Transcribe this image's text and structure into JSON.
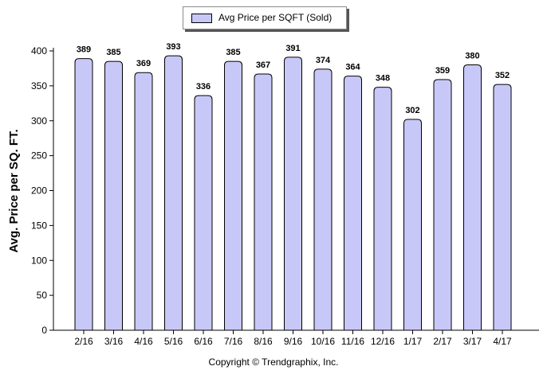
{
  "legend": {
    "label": "Avg Price per SQFT (Sold)"
  },
  "copyright": "Copyright © Trendgraphix, Inc.",
  "colors": {
    "bar_fill": "#c8c8f8",
    "bar_stroke": "#000000",
    "axis": "#000000"
  },
  "chart_data": {
    "type": "bar",
    "title": "",
    "xlabel": "",
    "ylabel": "Avg. Price per SQ. FT.",
    "ylim": [
      0,
      400
    ],
    "yticks": [
      0,
      50,
      100,
      150,
      200,
      250,
      300,
      350,
      400
    ],
    "grid": false,
    "legend_position": "top-center",
    "categories": [
      "2/16",
      "3/16",
      "4/16",
      "5/16",
      "6/16",
      "7/16",
      "8/16",
      "9/16",
      "10/16",
      "11/16",
      "12/16",
      "1/17",
      "2/17",
      "3/17",
      "4/17"
    ],
    "series": [
      {
        "name": "Avg Price per SQFT (Sold)",
        "values": [
          389,
          385,
          369,
          393,
          336,
          385,
          367,
          391,
          374,
          364,
          348,
          302,
          359,
          380,
          352
        ]
      }
    ]
  }
}
